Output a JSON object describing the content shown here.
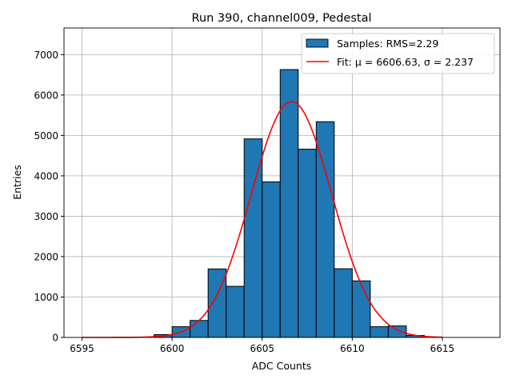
{
  "chart_data": {
    "type": "bar",
    "title": "Run 390, channel009, Pedestal",
    "xlabel": "ADC Counts",
    "ylabel": "Entries",
    "xlim": [
      6594.0,
      6618.2
    ],
    "ylim": [
      0,
      7660
    ],
    "grid": true,
    "legend_placement": "top-right",
    "x_ticks": [
      6595,
      6600,
      6605,
      6610,
      6615
    ],
    "y_ticks": [
      0,
      1000,
      2000,
      3000,
      4000,
      5000,
      6000,
      7000
    ],
    "histogram": {
      "name": "Samples: RMS=2.29",
      "color": "#1f77b4",
      "bin_edges": [
        6599,
        6600,
        6601,
        6602,
        6603,
        6604,
        6605,
        6606,
        6607,
        6608,
        6609,
        6610,
        6611,
        6612,
        6613,
        6614
      ],
      "values": [
        70,
        265,
        420,
        1695,
        1265,
        4915,
        3850,
        6630,
        4660,
        5340,
        1700,
        1400,
        265,
        285,
        50
      ]
    },
    "fit": {
      "name": "Fit: μ = 6606.63, σ = 2.237",
      "color": "#ff0000",
      "mu": 6606.63,
      "sigma": 2.237,
      "amplitude": 5840,
      "x_range": [
        6595,
        6615
      ]
    }
  }
}
